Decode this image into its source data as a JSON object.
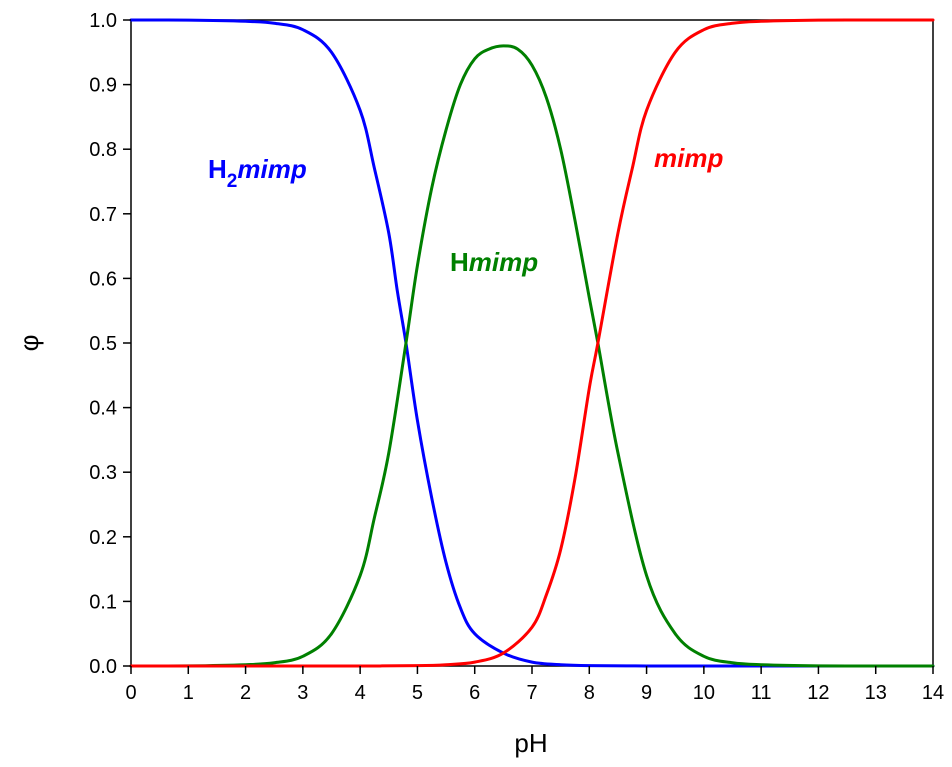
{
  "chart_data": {
    "type": "line",
    "xlabel": "pH",
    "ylabel": "φ",
    "xlim": [
      0,
      14
    ],
    "ylim": [
      0,
      1
    ],
    "x_ticks": [
      "0",
      "1",
      "2",
      "3",
      "4",
      "5",
      "6",
      "7",
      "8",
      "9",
      "10",
      "11",
      "12",
      "13",
      "14"
    ],
    "y_ticks": [
      "0.0",
      "0.1",
      "0.2",
      "0.3",
      "0.4",
      "0.5",
      "0.6",
      "0.7",
      "0.8",
      "0.9",
      "1.0"
    ],
    "grid": false,
    "series": [
      {
        "name": "H2mimp",
        "label_parts": [
          "H",
          "2",
          "mimp"
        ],
        "color": "#0000ff",
        "x": [
          0,
          1,
          2,
          2.5,
          3,
          3.5,
          4,
          4.25,
          4.5,
          4.65,
          4.8,
          5.0,
          5.25,
          5.5,
          5.75,
          6,
          6.5,
          7,
          7.5,
          8,
          9,
          10,
          12,
          14
        ],
        "y": [
          1.0,
          0.9998,
          0.998,
          0.995,
          0.985,
          0.95,
          0.86,
          0.77,
          0.67,
          0.58,
          0.5,
          0.38,
          0.26,
          0.16,
          0.09,
          0.05,
          0.02,
          0.006,
          0.002,
          0.0006,
          0.0001,
          0.0,
          0.0,
          0.0
        ]
      },
      {
        "name": "Hmimp",
        "label_parts": [
          "H",
          "",
          "mimp"
        ],
        "color": "#008000",
        "x": [
          0,
          1,
          2,
          2.5,
          3,
          3.5,
          4,
          4.25,
          4.5,
          4.8,
          5.0,
          5.25,
          5.5,
          5.75,
          6,
          6.25,
          6.5,
          6.75,
          7,
          7.25,
          7.5,
          7.75,
          8,
          8.15,
          8.5,
          9,
          9.5,
          10,
          10.5,
          11,
          12,
          13,
          14
        ],
        "y": [
          0.0,
          0.0002,
          0.002,
          0.005,
          0.015,
          0.05,
          0.14,
          0.23,
          0.33,
          0.5,
          0.62,
          0.74,
          0.83,
          0.9,
          0.94,
          0.955,
          0.96,
          0.955,
          0.93,
          0.88,
          0.8,
          0.69,
          0.57,
          0.5,
          0.33,
          0.14,
          0.05,
          0.015,
          0.005,
          0.002,
          0.0002,
          0.0,
          0.0
        ]
      },
      {
        "name": "mimp",
        "label_parts": [
          "",
          "",
          "mimp"
        ],
        "color": "#ff0000",
        "x": [
          0,
          2,
          3,
          4,
          5,
          5.5,
          6,
          6.5,
          7,
          7.25,
          7.5,
          7.75,
          8,
          8.15,
          8.5,
          8.75,
          9,
          9.5,
          10,
          10.5,
          11,
          12,
          13,
          14
        ],
        "y": [
          0.0,
          0.0,
          0.0,
          0.0,
          0.0005,
          0.002,
          0.006,
          0.02,
          0.06,
          0.11,
          0.18,
          0.29,
          0.43,
          0.5,
          0.67,
          0.77,
          0.86,
          0.95,
          0.985,
          0.995,
          0.998,
          0.9998,
          1.0,
          1.0
        ]
      }
    ]
  },
  "series_labels": [
    {
      "sub": "2",
      "main": "H",
      "italic": "mimp",
      "color": "#0000ff"
    },
    {
      "sub": "",
      "main": "H",
      "italic": "mimp",
      "color": "#008000"
    },
    {
      "sub": "",
      "main": "",
      "italic": "mimp",
      "color": "#ff0000"
    }
  ]
}
